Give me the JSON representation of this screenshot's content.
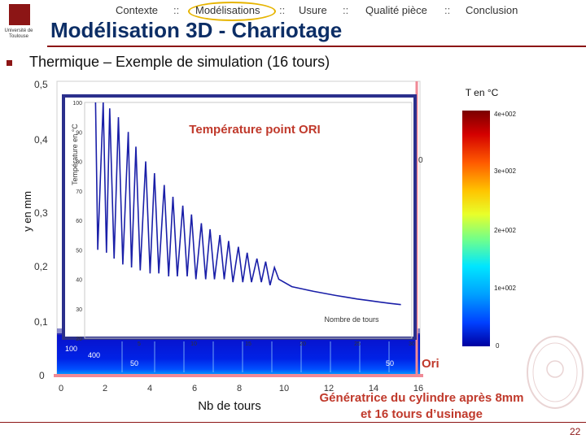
{
  "header": {
    "logo_text": "Université de Toulouse",
    "nav_items": [
      {
        "label": "Contexte"
      },
      {
        "label": "Modélisations"
      },
      {
        "label": "Usure"
      },
      {
        "label": "Qualité pièce"
      },
      {
        "label": "Conclusion"
      }
    ],
    "separator": "::",
    "active_nav": "Modélisations"
  },
  "title": "Modélisation 3D - Chariotage",
  "subtitle": "Thermique – Exemple de simulation (16 tours)",
  "outer_plot": {
    "y_axis_label": "y en mm",
    "y_ticks": [
      "0,5",
      "0,4",
      "0,3",
      "0,2",
      "0,1",
      "0"
    ],
    "x_axis_label": "Nb de tours",
    "x_ticks": [
      "0",
      "2",
      "4",
      "6",
      "8",
      "10",
      "12",
      "14",
      "16"
    ],
    "contour_labels": [
      "100",
      "400",
      "50",
      "50"
    ],
    "edge_label": "0",
    "point_label": "Ori",
    "caption": "Génératrice du cylindre après 8mm et 16 tours d’usinage"
  },
  "color_scale": {
    "title": "T en °C",
    "labels": [
      "4e+002",
      "3e+002",
      "2e+002",
      "1e+002",
      "0"
    ],
    "colors": [
      "#7a0000",
      "#d40000",
      "#ff5a00",
      "#ffc400",
      "#e8ff2a",
      "#6dff8e",
      "#00e6ff",
      "#00a0ff",
      "#0040ff",
      "#0000a0"
    ]
  },
  "inset": {
    "title": "Température point ORI",
    "xlabel": "Nombre de tours",
    "ylabel": "Température en °C",
    "x_ticks": [
      "5",
      "10",
      "15",
      "20",
      "25",
      "30"
    ],
    "y_ticks": [
      "100",
      "90",
      "80",
      "70",
      "60",
      "50",
      "40",
      "30",
      "20"
    ]
  },
  "chart_data": {
    "type": "line",
    "title": "Température point ORI",
    "xlabel": "Nombre de tours",
    "ylabel": "Température en °C",
    "xlim": [
      0,
      30
    ],
    "ylim": [
      20,
      100
    ],
    "series": [
      {
        "values": [
          [
            1.0,
            100
          ],
          [
            1.2,
            50
          ],
          [
            1.7,
            100
          ],
          [
            2.0,
            49
          ],
          [
            2.3,
            98
          ],
          [
            2.7,
            47
          ],
          [
            3.1,
            95
          ],
          [
            3.5,
            45
          ],
          [
            4.0,
            90
          ],
          [
            4.3,
            44
          ],
          [
            4.7,
            85
          ],
          [
            5.1,
            43
          ],
          [
            5.6,
            80
          ],
          [
            6.0,
            42
          ],
          [
            6.4,
            76
          ],
          [
            6.8,
            42
          ],
          [
            7.3,
            72
          ],
          [
            7.7,
            41
          ],
          [
            8.1,
            68
          ],
          [
            8.5,
            41
          ],
          [
            9.0,
            65
          ],
          [
            9.4,
            41
          ],
          [
            9.8,
            62
          ],
          [
            10.2,
            40
          ],
          [
            10.7,
            59
          ],
          [
            11.1,
            40
          ],
          [
            11.5,
            57
          ],
          [
            11.9,
            40
          ],
          [
            12.4,
            55
          ],
          [
            12.8,
            40
          ],
          [
            13.2,
            53
          ],
          [
            13.6,
            39
          ],
          [
            14.1,
            51
          ],
          [
            14.5,
            39
          ],
          [
            14.9,
            49
          ],
          [
            15.3,
            39
          ],
          [
            15.8,
            47
          ],
          [
            16.2,
            39
          ],
          [
            16.6,
            46
          ],
          [
            17.0,
            38
          ],
          [
            17.4,
            44
          ],
          [
            17.8,
            40
          ],
          [
            19,
            37.5
          ],
          [
            20,
            36.7
          ],
          [
            21,
            35.9
          ],
          [
            22,
            35.2
          ],
          [
            23,
            34.5
          ],
          [
            24,
            33.9
          ],
          [
            25,
            33.3
          ],
          [
            26,
            32.8
          ],
          [
            27,
            32.3
          ],
          [
            28,
            31.8
          ],
          [
            29,
            31.4
          ]
        ]
      }
    ]
  },
  "page_number": "22"
}
